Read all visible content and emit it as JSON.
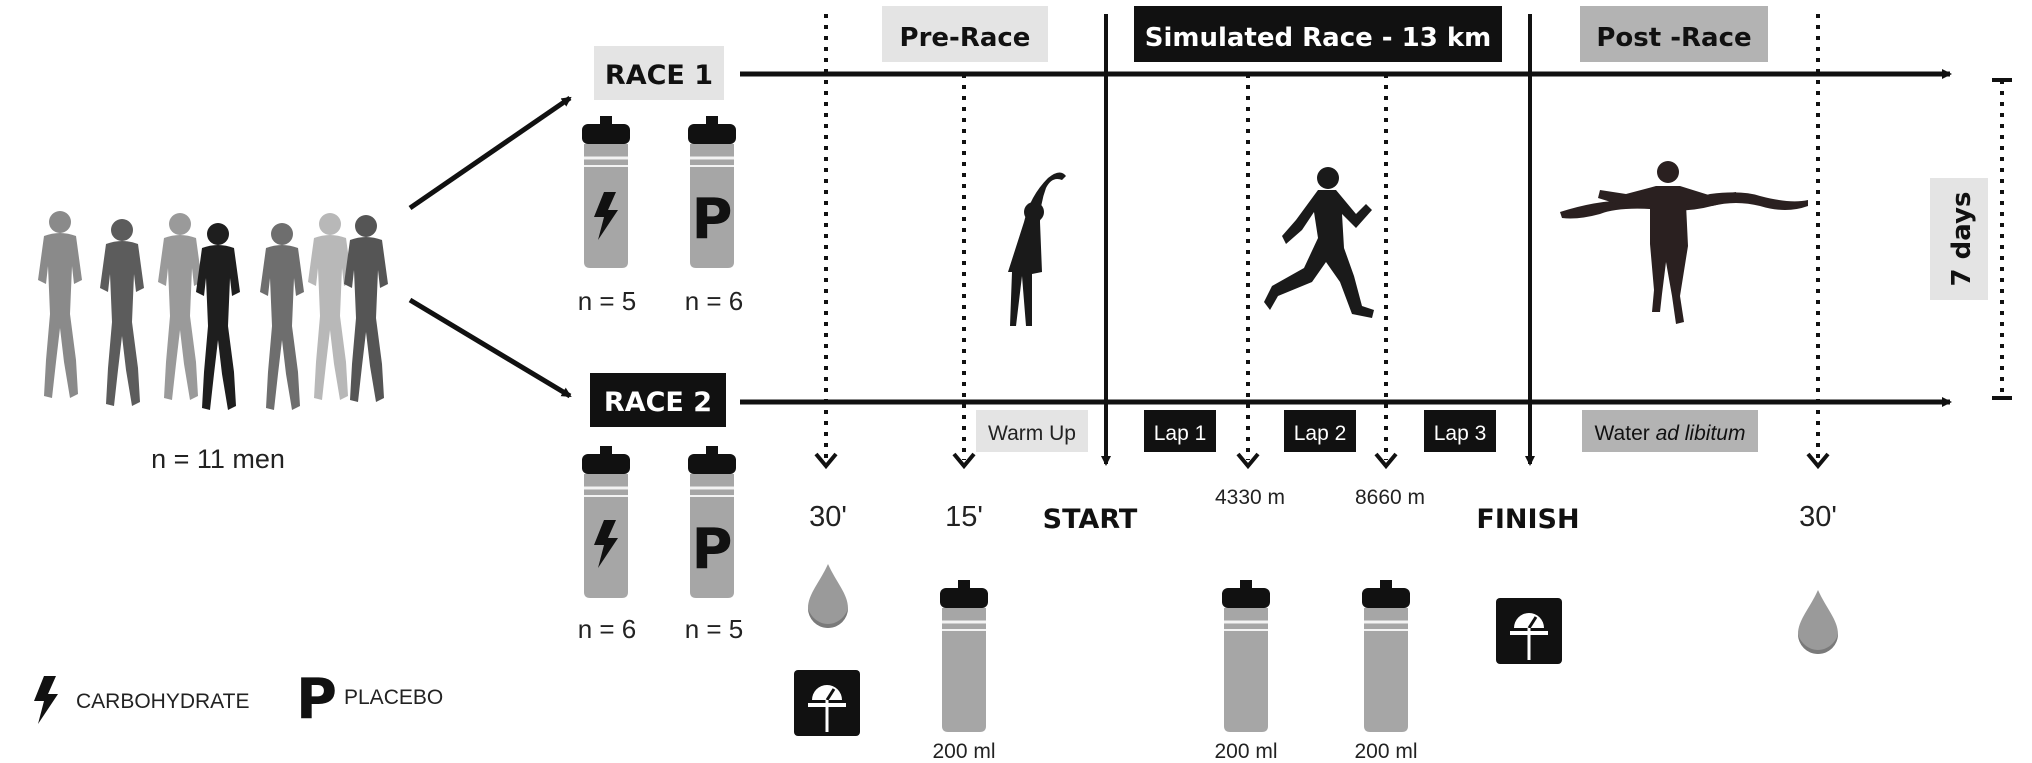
{
  "participants": {
    "label": "n = 11 men"
  },
  "race1": {
    "label": "RACE 1",
    "carb_n": "n = 5",
    "placebo_n": "n = 6"
  },
  "race2": {
    "label": "RACE 2",
    "carb_n": "n = 6",
    "placebo_n": "n = 5"
  },
  "bottle_letter": "P",
  "phases": {
    "pre": "Pre-Race",
    "race": "Simulated Race - 13 km",
    "post": "Post -Race"
  },
  "washout": "7 days",
  "timeline": {
    "warmup": "Warm Up",
    "lap1": "Lap 1",
    "lap2": "Lap 2",
    "lap3": "Lap 3",
    "water_prefix": "Water ",
    "water_italic": "ad libitum"
  },
  "times": {
    "t1": "30'",
    "t2": "15'",
    "start": "START",
    "d1": "4330 m",
    "d2": "8660 m",
    "finish": "FINISH",
    "t3": "30'"
  },
  "volumes": {
    "v1": "200 ml",
    "v2": "200 ml",
    "v3": "200 ml"
  },
  "legend": {
    "carb": "CARBOHYDRATE",
    "placebo": "PLACEBO"
  },
  "colors": {
    "black": "#111111",
    "dark_gray": "#2a2a2a",
    "bottle_gray": "#a6a6a6",
    "light_box": "#e4e4e4",
    "mid_box": "#b3b3b3",
    "runner_grays": [
      "#8a8a8a",
      "#5c5c5c",
      "#9a9a9a",
      "#1e1e1e",
      "#6e6e6e",
      "#b8b8b8",
      "#555555"
    ]
  },
  "icons": [
    "runner-group-icon",
    "arrow-icon",
    "bottle-icon",
    "lightning-icon",
    "placebo-p-icon",
    "stretching-runner-icon",
    "running-man-icon",
    "finish-line-runner-icon",
    "water-drop-icon",
    "weight-scale-icon"
  ]
}
